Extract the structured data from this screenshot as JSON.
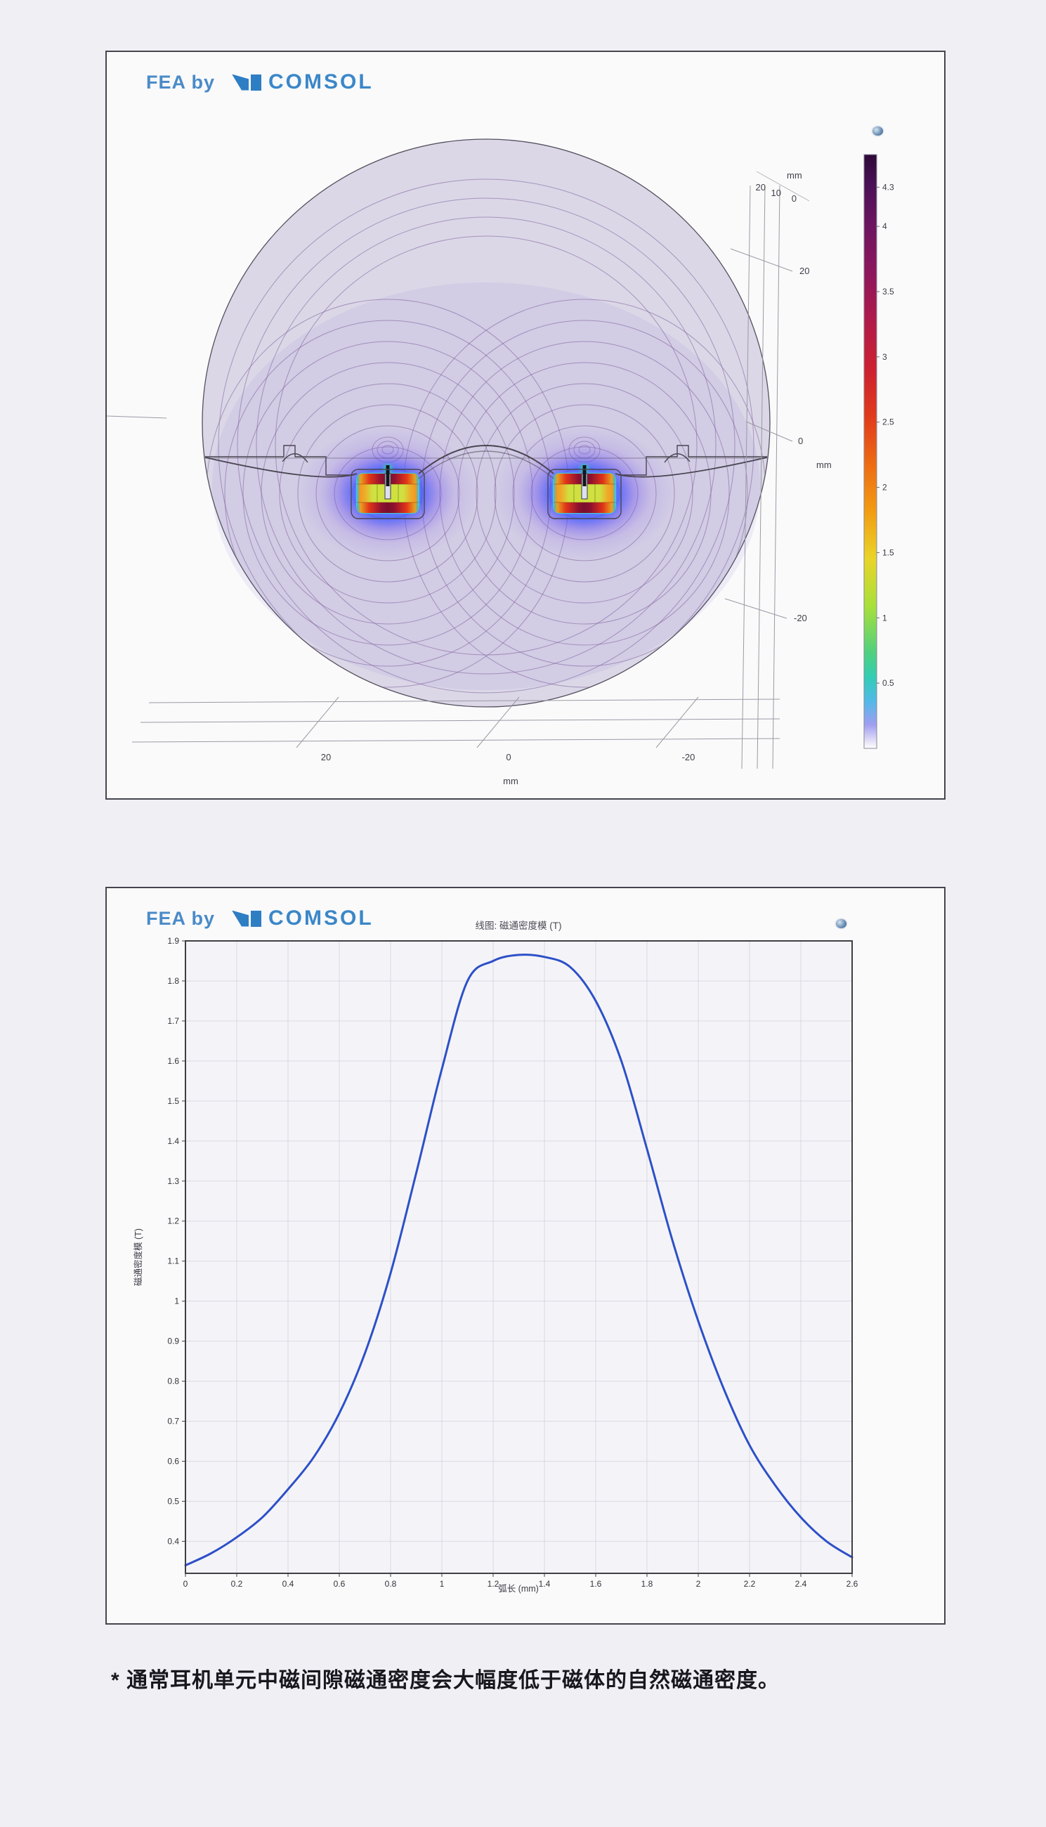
{
  "page": {
    "footnote": "* 通常耳机单元中磁间隙磁通密度会大幅度低于磁体的自然磁通密度。"
  },
  "branding": {
    "fea_by": "FEA by",
    "comsol": "COMSOL"
  },
  "colors": {
    "comsol_blue": "#3b87c8",
    "curve_blue": "#2d50c8",
    "field_line_purple": "#7b5c98",
    "domain_lavender": "#dbd7e7"
  },
  "chart_data": [
    {
      "type": "heatmap",
      "title": "",
      "colorbar_tick_labels": [
        "4.3",
        "4",
        "3.5",
        "3",
        "2.5",
        "2",
        "1.5",
        "1",
        "0.5"
      ],
      "colorbar_range": [
        0,
        4.55
      ],
      "depth_axis_tick_labels": [
        "20",
        "10",
        "0"
      ],
      "y_axis_tick_labels": [
        "20",
        "0",
        "-20"
      ],
      "x_axis_tick_labels": [
        "20",
        "0",
        "-20"
      ],
      "axis_unit": "mm",
      "legend_position": "right"
    },
    {
      "type": "line",
      "title": "线图: 磁通密度模 (T)",
      "xlabel": "弧长 (mm)",
      "ylabel": "磁通密度模 (T)",
      "xlim": [
        0,
        2.6
      ],
      "ylim": [
        0.32,
        1.9
      ],
      "grid": true,
      "x_tick_labels": [
        "0",
        "0.2",
        "0.4",
        "0.6",
        "0.8",
        "1",
        "1.2",
        "1.4",
        "1.6",
        "1.8",
        "2",
        "2.2",
        "2.4",
        "2.6"
      ],
      "y_tick_labels": [
        "1.9",
        "1.8",
        "1.7",
        "1.6",
        "1.5",
        "1.4",
        "1.3",
        "1.2",
        "1.1",
        "1",
        "0.9",
        "0.8",
        "0.7",
        "0.6",
        "0.5",
        "0.4"
      ],
      "x": [
        0,
        0.1,
        0.2,
        0.3,
        0.4,
        0.5,
        0.6,
        0.7,
        0.8,
        0.9,
        1.0,
        1.1,
        1.2,
        1.3,
        1.4,
        1.5,
        1.6,
        1.7,
        1.8,
        1.9,
        2.0,
        2.1,
        2.2,
        2.3,
        2.4,
        2.5,
        2.6
      ],
      "y": [
        0.34,
        0.37,
        0.41,
        0.46,
        0.53,
        0.61,
        0.72,
        0.87,
        1.07,
        1.32,
        1.58,
        1.8,
        1.85,
        1.865,
        1.86,
        1.835,
        1.75,
        1.6,
        1.38,
        1.15,
        0.95,
        0.78,
        0.64,
        0.54,
        0.46,
        0.4,
        0.36
      ]
    }
  ]
}
